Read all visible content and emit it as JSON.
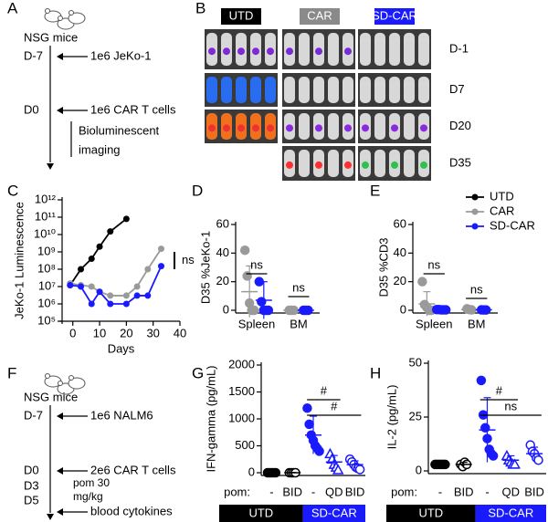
{
  "panel_labels": [
    "A",
    "B",
    "C",
    "D",
    "E",
    "F",
    "G",
    "H"
  ],
  "panel_a": {
    "cohort": "NSG mice",
    "steps": [
      {
        "day": "D-7",
        "event": "1e6 JeKo-1"
      },
      {
        "day": "D0",
        "event": "1e6 CAR T cells"
      }
    ],
    "readout": [
      "Bioluminescent",
      "imaging"
    ]
  },
  "panel_b": {
    "groups": [
      "UTD",
      "CAR",
      "SD-CAR"
    ],
    "timepoints": [
      "D-1",
      "D7",
      "D20",
      "D35"
    ]
  },
  "panel_f": {
    "cohort": "NSG mice",
    "steps": [
      {
        "day": "D-7",
        "event": "1e6 NALM6"
      },
      {
        "day": "D0",
        "event": "2e6 CAR T cells"
      },
      {
        "day": "D3"
      },
      {
        "day": "D5",
        "event": "blood cytokines"
      }
    ],
    "treatment": [
      "pom 30",
      "mg/kg"
    ]
  },
  "chart_data": [
    {
      "type": "line",
      "xlabel": "Days",
      "ylabel": "JeKo-1 Luminescence",
      "log_y": true,
      "xlim": [
        -4,
        40
      ],
      "xticks": [
        0,
        10,
        20,
        30,
        40
      ],
      "ylim": [
        100000,
        1000000000000
      ],
      "yticks": [
        {
          "value": 100000,
          "label": "10⁵"
        },
        {
          "value": 1000000,
          "label": "10⁶"
        },
        {
          "value": 10000000,
          "label": "10⁷"
        },
        {
          "value": 100000000,
          "label": "10⁸"
        },
        {
          "value": 1000000000,
          "label": "10⁹"
        },
        {
          "value": 10000000000,
          "label": "10¹⁰"
        },
        {
          "value": 100000000000,
          "label": "10¹¹"
        },
        {
          "value": 1000000000000,
          "label": "10¹²"
        }
      ],
      "legend": "upper right",
      "annotations": [
        "ns"
      ],
      "series": [
        {
          "name": "UTD",
          "color": "#000000",
          "x": [
            -1,
            3,
            7,
            10,
            14,
            20
          ],
          "values": [
            12000000,
            100000000,
            400000000,
            2000000000,
            15000000000,
            80000000000
          ]
        },
        {
          "name": "CAR",
          "color": "#9a9a9a",
          "x": [
            -1,
            3,
            7,
            10,
            14,
            20,
            24,
            28,
            33
          ],
          "values": [
            15000000,
            12000000,
            10000000,
            5000000,
            3000000,
            3000000,
            10000000,
            100000000,
            1500000000
          ]
        },
        {
          "name": "SD-CAR",
          "color": "#1a1aff",
          "x": [
            -1,
            3,
            7,
            10,
            14,
            20,
            24,
            28,
            33
          ],
          "values": [
            12000000,
            10000000,
            1000000,
            5000000,
            1000000,
            1000000,
            3000000,
            3000000,
            150000000
          ]
        }
      ]
    },
    {
      "type": "dot",
      "ylabel": "D35 %JeKo-1",
      "ylim": [
        0,
        60
      ],
      "yticks": [
        0,
        20,
        40,
        60
      ],
      "categories": [
        "Spleen",
        "BM"
      ],
      "annotations": [
        "ns",
        "ns"
      ],
      "series": [
        {
          "color": "#9a9a9a",
          "values": [
            [
              42,
              24,
              5,
              0,
              0
            ],
            [
              0,
              0,
              0
            ]
          ],
          "means": [
            13,
            0
          ],
          "sds": [
            18,
            0
          ]
        },
        {
          "color": "#1a1aff",
          "values": [
            [
              20,
              6,
              0,
              0,
              0
            ],
            [
              0,
              0,
              0
            ]
          ],
          "means": [
            7,
            0
          ],
          "sds": [
            13,
            0
          ]
        }
      ]
    },
    {
      "type": "dot",
      "ylabel": "D35 %CD3",
      "ylim": [
        0,
        60
      ],
      "yticks": [
        0,
        20,
        40,
        60
      ],
      "categories": [
        "Spleen",
        "BM"
      ],
      "annotations": [
        "ns",
        "ns"
      ],
      "series": [
        {
          "color": "#9a9a9a",
          "values": [
            [
              20,
              4,
              2,
              0,
              0
            ],
            [
              1,
              0.5,
              0.3
            ]
          ],
          "means": [
            4.5,
            0.5
          ],
          "sds": [
            8.5,
            0.4
          ]
        },
        {
          "color": "#1a1aff",
          "values": [
            [
              0.5,
              0.5,
              0.3,
              0.3,
              0.3
            ],
            [
              0.3,
              0.2,
              0.2
            ]
          ],
          "means": [
            0.5,
            0.3
          ],
          "sds": [
            0.3,
            0.2
          ]
        }
      ]
    },
    {
      "type": "group-dot",
      "ylabel": "IFN-gamma (pg/mL)",
      "ylim": [
        0,
        2000
      ],
      "yticks": [
        0,
        500,
        1000,
        1500,
        2000
      ],
      "x_label": "pom:",
      "annotations": [
        "#",
        "#"
      ],
      "groups": [
        {
          "name": "UTD",
          "color": "#000000",
          "conditions": [
            {
              "label": "-",
              "marker": "circle",
              "values": [
                0,
                0,
                0,
                0,
                0
              ],
              "mean": 0,
              "sd": 5
            },
            {
              "label": "BID",
              "marker": "circle-open",
              "values": [
                0,
                0,
                0,
                0
              ],
              "mean": 0,
              "sd": 5
            }
          ]
        },
        {
          "name": "SD-CAR",
          "color": "#1a1aff",
          "conditions": [
            {
              "label": "-",
              "marker": "circle",
              "values": [
                1200,
                900,
                700,
                600,
                500,
                450,
                400
              ],
              "mean": 700,
              "sd": 350
            },
            {
              "label": "QD",
              "marker": "triangle-open",
              "values": [
                350,
                250,
                150,
                100,
                50
              ],
              "mean": 200,
              "sd": 120
            },
            {
              "label": "BID",
              "marker": "circle-open",
              "values": [
                250,
                200,
                150,
                100,
                80,
                60
              ],
              "mean": 150,
              "sd": 70
            }
          ]
        }
      ]
    },
    {
      "type": "group-dot",
      "ylabel": "IL-2 (pg/mL)",
      "ylim": [
        0,
        50
      ],
      "yticks": [
        0,
        25,
        50
      ],
      "x_label": "pom:",
      "annotations": [
        "#",
        "ns"
      ],
      "groups": [
        {
          "name": "UTD",
          "color": "#000000",
          "conditions": [
            {
              "label": "-",
              "marker": "circle",
              "values": [
                3,
                3,
                3,
                3,
                3,
                3
              ],
              "mean": 3,
              "sd": 0.3
            },
            {
              "label": "BID",
              "marker": "circle-open",
              "values": [
                3,
                2,
                4,
                3
              ],
              "mean": 3,
              "sd": 1
            }
          ]
        },
        {
          "name": "SD-CAR",
          "color": "#1a1aff",
          "conditions": [
            {
              "label": "-",
              "marker": "circle",
              "values": [
                42,
                26,
                20,
                15,
                10,
                8,
                7
              ],
              "mean": 19,
              "sd": 15
            },
            {
              "label": "QD",
              "marker": "triangle-open",
              "values": [
                7,
                5,
                4,
                3,
                3
              ],
              "mean": 5,
              "sd": 2
            },
            {
              "label": "BID",
              "marker": "circle-open",
              "values": [
                12,
                9,
                8,
                6,
                5
              ],
              "mean": 8,
              "sd": 3
            }
          ]
        }
      ]
    }
  ]
}
